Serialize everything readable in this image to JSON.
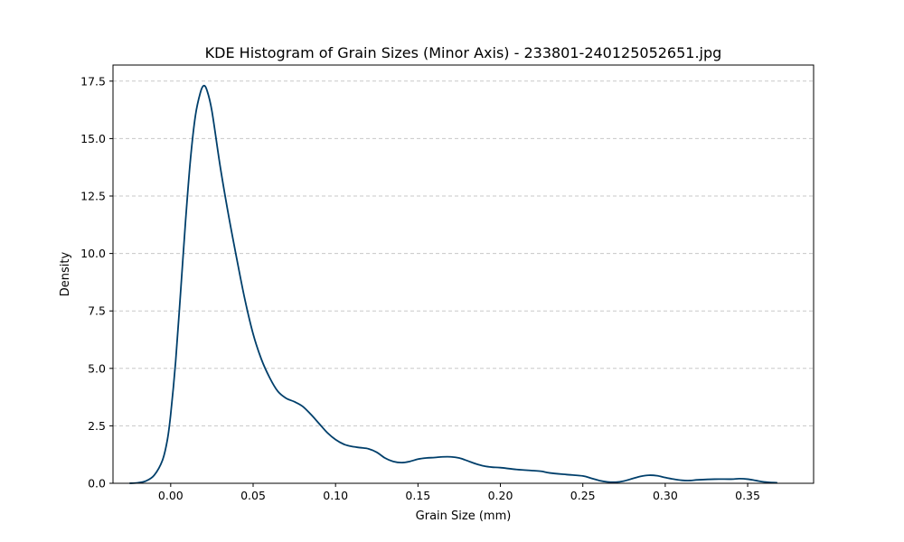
{
  "chart_data": {
    "type": "line",
    "title": "KDE Histogram of Grain Sizes (Minor Axis) - 233801-240125052651.jpg",
    "xlabel": "Grain Size (mm)",
    "ylabel": "Density",
    "xlim": [
      -0.035,
      0.39
    ],
    "ylim": [
      0,
      18.2
    ],
    "xticks": [
      0.0,
      0.05,
      0.1,
      0.15,
      0.2,
      0.25,
      0.3,
      0.35
    ],
    "xtick_labels": [
      "0.00",
      "0.05",
      "0.10",
      "0.15",
      "0.20",
      "0.25",
      "0.30",
      "0.35"
    ],
    "yticks": [
      0,
      2.5,
      5.0,
      7.5,
      10.0,
      12.5,
      15.0,
      17.5
    ],
    "ytick_labels": [
      "0.0",
      "2.5",
      "5.0",
      "7.5",
      "10.0",
      "12.5",
      "15.0",
      "17.5"
    ],
    "grid": "y-dashed",
    "series": [
      {
        "color": "#003f6b",
        "x": [
          -0.025,
          -0.02,
          -0.015,
          -0.01,
          -0.005,
          -0.002,
          0.0,
          0.003,
          0.006,
          0.009,
          0.012,
          0.015,
          0.018,
          0.02,
          0.022,
          0.025,
          0.03,
          0.035,
          0.04,
          0.045,
          0.05,
          0.055,
          0.06,
          0.065,
          0.07,
          0.075,
          0.08,
          0.085,
          0.09,
          0.095,
          0.1,
          0.105,
          0.11,
          0.115,
          0.12,
          0.125,
          0.13,
          0.135,
          0.14,
          0.145,
          0.15,
          0.155,
          0.16,
          0.165,
          0.17,
          0.175,
          0.18,
          0.185,
          0.19,
          0.195,
          0.2,
          0.21,
          0.22,
          0.225,
          0.23,
          0.24,
          0.25,
          0.255,
          0.26,
          0.265,
          0.27,
          0.275,
          0.28,
          0.285,
          0.29,
          0.295,
          0.3,
          0.305,
          0.31,
          0.315,
          0.32,
          0.33,
          0.34,
          0.345,
          0.35,
          0.355,
          0.36,
          0.368
        ],
        "y": [
          0.0,
          0.02,
          0.1,
          0.35,
          1.0,
          1.9,
          3.0,
          5.3,
          8.3,
          11.4,
          14.1,
          16.0,
          17.0,
          17.3,
          17.1,
          16.2,
          13.8,
          11.7,
          9.8,
          8.0,
          6.5,
          5.4,
          4.6,
          4.0,
          3.7,
          3.55,
          3.35,
          3.0,
          2.6,
          2.2,
          1.9,
          1.7,
          1.6,
          1.55,
          1.5,
          1.35,
          1.1,
          0.95,
          0.9,
          0.95,
          1.05,
          1.1,
          1.12,
          1.15,
          1.15,
          1.1,
          0.98,
          0.85,
          0.75,
          0.7,
          0.68,
          0.6,
          0.55,
          0.52,
          0.45,
          0.38,
          0.32,
          0.22,
          0.12,
          0.06,
          0.05,
          0.1,
          0.2,
          0.3,
          0.35,
          0.33,
          0.25,
          0.18,
          0.13,
          0.12,
          0.15,
          0.18,
          0.18,
          0.2,
          0.18,
          0.12,
          0.06,
          0.02
        ]
      }
    ]
  }
}
